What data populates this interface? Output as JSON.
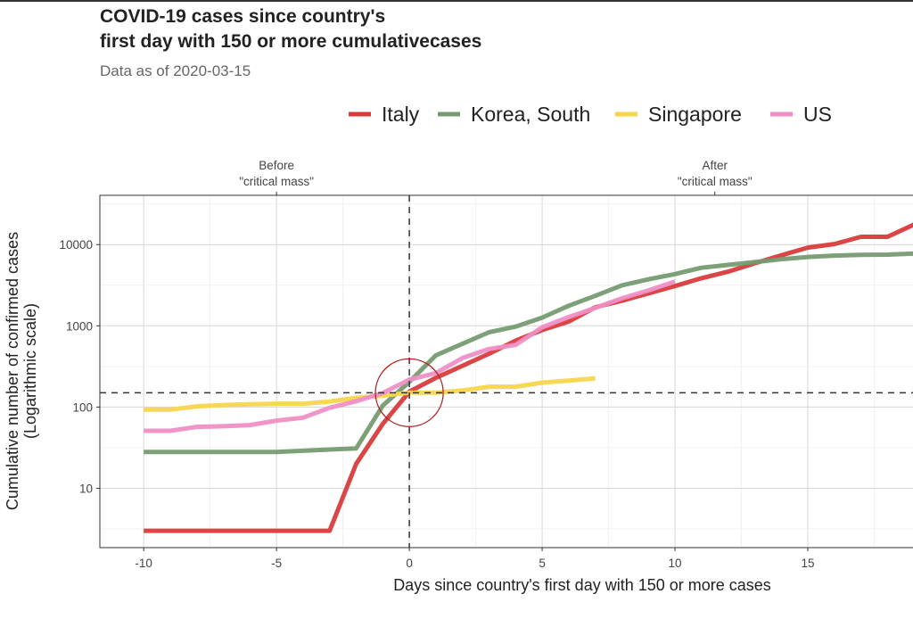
{
  "chart_data": {
    "type": "line",
    "title_lines": [
      "COVID-19 cases since country's",
      "first day with 150 or more cumulativecases"
    ],
    "subtitle": "Data as of 2020-03-15",
    "xlabel": "Days since country's first day with 150 or more cases",
    "ylabel_lines": [
      "Cumulative number of confirmed cases",
      "(Logarithmic scale)"
    ],
    "y_scale": "log10",
    "xlim": [
      -11.65,
      18.96
    ],
    "ylim": [
      1.86,
      40400
    ],
    "x_ticks": [
      -10,
      -5,
      0,
      5,
      10,
      15
    ],
    "x_tick_labels": [
      "-10",
      "-5",
      "0",
      "5",
      "10",
      "15"
    ],
    "y_ticks": [
      10,
      100,
      1000,
      10000
    ],
    "y_tick_labels": [
      "10",
      "100",
      "1000",
      "10000"
    ],
    "grid": true,
    "legend_position": "top",
    "secondary_axis": [
      {
        "x": -5,
        "lines": [
          "Before",
          "\"critical mass\""
        ]
      },
      {
        "x": 11.5,
        "lines": [
          "After",
          "\"critical mass\""
        ]
      }
    ],
    "reference_lines": {
      "hline": 150,
      "vline": 0,
      "circle_center": [
        0,
        150
      ],
      "style": "dashed"
    },
    "series": [
      {
        "name": "Italy",
        "color": "#d93b3b",
        "x": [
          -10,
          -9,
          -8,
          -7,
          -6,
          -5,
          -4,
          -3,
          -2,
          -1,
          0,
          1,
          2,
          3,
          4,
          5,
          6,
          7,
          8,
          9,
          10,
          11,
          12,
          13,
          14,
          15,
          16,
          17,
          18,
          19
        ],
        "y": [
          3,
          3,
          3,
          3,
          3,
          3,
          3,
          3,
          20,
          62,
          155,
          229,
          322,
          453,
          655,
          888,
          1128,
          1694,
          2036,
          2502,
          3089,
          3858,
          4636,
          5883,
          7375,
          9172,
          10149,
          12462,
          12462,
          17660
        ]
      },
      {
        "name": "Korea, South",
        "color": "#769b72",
        "x": [
          -10,
          -9,
          -8,
          -7,
          -6,
          -5,
          -4,
          -3,
          -2,
          -1,
          0,
          1,
          2,
          3,
          4,
          5,
          6,
          7,
          8,
          9,
          10,
          11,
          12,
          13,
          14,
          15,
          16,
          17,
          18,
          19
        ],
        "y": [
          28,
          28,
          28,
          28,
          28,
          28,
          29,
          30,
          31,
          104,
          204,
          433,
          602,
          833,
          977,
          1261,
          1766,
          2337,
          3150,
          3736,
          4335,
          5186,
          5621,
          6088,
          6593,
          7041,
          7314,
          7478,
          7513,
          7755
        ]
      },
      {
        "name": "Singapore",
        "color": "#f7d54a",
        "x": [
          -10,
          -9,
          -8,
          -7,
          -6,
          -5,
          -4,
          -3,
          -2,
          -1,
          0,
          1,
          2,
          3,
          4,
          5,
          6,
          7
        ],
        "y": [
          93,
          93,
          102,
          106,
          108,
          110,
          110,
          117,
          130,
          138,
          150,
          150,
          160,
          178,
          178,
          200,
          212,
          226
        ]
      },
      {
        "name": "US",
        "color": "#ef8fc5",
        "x": [
          -10,
          -9,
          -8,
          -7,
          -6,
          -5,
          -4,
          -3,
          -2,
          -1,
          0,
          1,
          2,
          3,
          4,
          5,
          6,
          7,
          8,
          9,
          10
        ],
        "y": [
          51,
          51,
          57,
          58,
          60,
          68,
          74,
          98,
          118,
          149,
          217,
          262,
          402,
          518,
          583,
          959,
          1281,
          1663,
          2179,
          2726,
          3499
        ]
      }
    ]
  }
}
